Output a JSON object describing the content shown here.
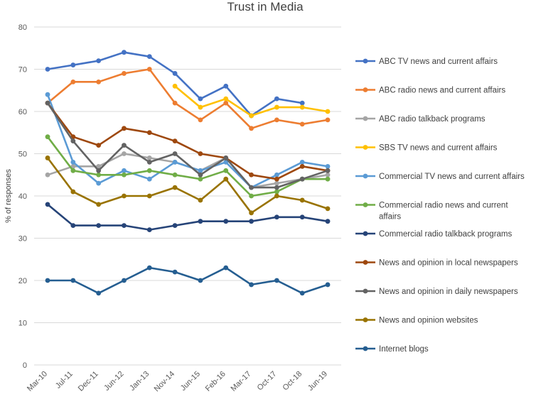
{
  "chart_data": {
    "type": "line",
    "title": "Trust in Media",
    "xlabel": "",
    "ylabel": "% of responses",
    "ylim": [
      0,
      80
    ],
    "y_ticks": [
      0,
      10,
      20,
      30,
      40,
      50,
      60,
      70,
      80
    ],
    "grid": "horizontal",
    "legend_position": "right",
    "categories": [
      "Mar-10",
      "Jul-11",
      "Dec-11",
      "Jun-12",
      "Jan-13",
      "Nov-14",
      "Jun-15",
      "Feb-16",
      "Mar-17",
      "Oct-17",
      "Oct-18",
      "Jun-19"
    ],
    "series": [
      {
        "name": "ABC TV news and current affairs",
        "color": "#4472C4",
        "values": [
          70,
          71,
          72,
          74,
          73,
          69,
          63,
          66,
          59,
          63,
          62,
          null
        ]
      },
      {
        "name": "ABC radio news and current affairs",
        "color": "#ED7D31",
        "values": [
          62,
          67,
          67,
          69,
          70,
          62,
          58,
          62,
          56,
          58,
          57,
          58
        ]
      },
      {
        "name": "ABC radio talkback programs",
        "color": "#A5A5A5",
        "values": [
          45,
          47,
          47,
          50,
          49,
          48,
          46,
          49,
          42,
          43,
          44,
          45
        ]
      },
      {
        "name": "SBS TV news and current affairs",
        "color": "#FFC000",
        "values": [
          null,
          null,
          null,
          null,
          null,
          66,
          61,
          63,
          59,
          61,
          61,
          60
        ]
      },
      {
        "name": "Commercial TV news and current affairs",
        "color": "#5B9BD5",
        "values": [
          64,
          48,
          43,
          46,
          44,
          48,
          46,
          48,
          42,
          45,
          48,
          47
        ]
      },
      {
        "name": "Commercial radio news and current affairs",
        "color": "#70AD47",
        "values": [
          54,
          46,
          45,
          45,
          46,
          45,
          44,
          46,
          40,
          41,
          44,
          44
        ]
      },
      {
        "name": "Commercial radio talkback programs",
        "color": "#264478",
        "values": [
          38,
          33,
          33,
          33,
          32,
          33,
          34,
          34,
          34,
          35,
          35,
          34
        ]
      },
      {
        "name": "News and opinion in local newspapers",
        "color": "#9E480E",
        "values": [
          62,
          54,
          52,
          56,
          55,
          53,
          50,
          49,
          45,
          44,
          47,
          46
        ]
      },
      {
        "name": "News and opinion in daily newspapers",
        "color": "#636363",
        "values": [
          62,
          53,
          46,
          52,
          48,
          50,
          45,
          49,
          42,
          42,
          44,
          46
        ]
      },
      {
        "name": "News and opinion websites",
        "color": "#997300",
        "values": [
          49,
          41,
          38,
          40,
          40,
          42,
          39,
          44,
          36,
          40,
          39,
          37
        ]
      },
      {
        "name": "Internet blogs",
        "color": "#255E91",
        "values": [
          20,
          20,
          17,
          20,
          23,
          22,
          20,
          23,
          19,
          20,
          17,
          19
        ]
      }
    ]
  }
}
